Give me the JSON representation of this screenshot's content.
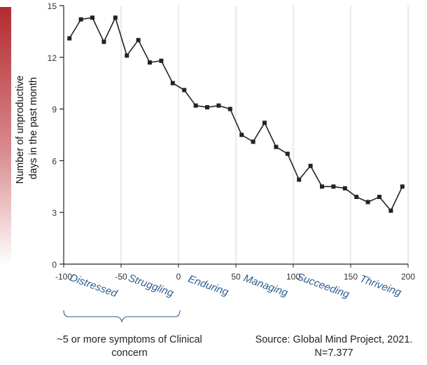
{
  "chart_data": {
    "type": "line",
    "ylabel_lines": [
      "Number of unproductive",
      "days in the past month"
    ],
    "xlabel": "",
    "xlim": [
      -100,
      200
    ],
    "ylim": [
      0,
      15
    ],
    "xticks": [
      -100,
      -50,
      0,
      50,
      100,
      150,
      200
    ],
    "yticks": [
      0,
      3,
      6,
      9,
      12,
      15
    ],
    "grid": "vertical",
    "colors": {
      "line": "#222222",
      "marker": "#222222",
      "accent_bar": "#b22a30",
      "category_text": "#2c5d8f",
      "grid": "#d6d6d6"
    },
    "series": [
      {
        "x": [
          -95,
          -85,
          -75,
          -65,
          -55,
          -45,
          -35,
          -25,
          -15,
          -5,
          5,
          15,
          25,
          35,
          45,
          55,
          65,
          75,
          85,
          95,
          105,
          115,
          125,
          135,
          145,
          155,
          165,
          175,
          185,
          195
        ],
        "values": [
          13.1,
          14.2,
          14.3,
          12.9,
          14.3,
          12.1,
          13.0,
          11.7,
          11.8,
          10.5,
          10.1,
          9.2,
          9.1,
          9.2,
          9.0,
          7.5,
          7.1,
          8.2,
          6.8,
          6.4,
          4.9,
          5.7,
          4.5,
          4.5,
          4.4,
          3.9,
          3.6,
          3.9,
          3.1,
          4.5
        ]
      }
    ],
    "categories": [
      {
        "label": "Distressed",
        "x": -75
      },
      {
        "label": "Struggling",
        "x": -25
      },
      {
        "label": "Enduring",
        "x": 25
      },
      {
        "label": "Managing",
        "x": 75
      },
      {
        "label": "Succeeding",
        "x": 125
      },
      {
        "label": "Thriveing",
        "x": 175
      }
    ]
  },
  "notes": {
    "left": "~5 or more symptoms of Clinical concern",
    "right": "Source: Global Mind Project, 2021. N=7.377"
  }
}
